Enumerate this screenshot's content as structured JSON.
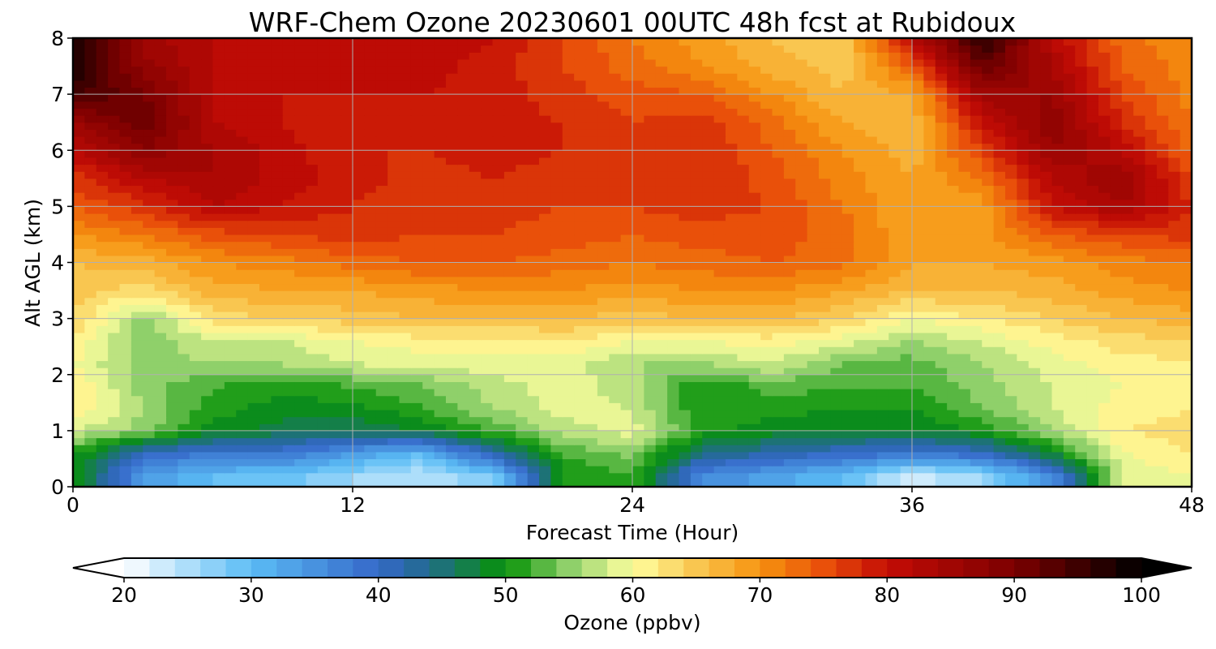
{
  "chart_data": {
    "type": "heatmap",
    "title": "WRF-Chem Ozone  20230601 00UTC 48h fcst at Rubidoux",
    "xlabel": "Forecast Time (Hour)",
    "ylabel": "Alt AGL (km)",
    "xlim": [
      0,
      48
    ],
    "ylim": [
      0,
      8
    ],
    "x_ticks": [
      0,
      12,
      24,
      36,
      48
    ],
    "y_ticks": [
      0,
      1,
      2,
      3,
      4,
      5,
      6,
      7,
      8
    ],
    "grid": true,
    "x_hours": [
      0,
      3,
      6,
      9,
      12,
      15,
      18,
      21,
      24,
      27,
      30,
      33,
      36,
      39,
      42,
      45,
      48
    ],
    "z_km": [
      0.2,
      0.6,
      1.0,
      1.4,
      1.8,
      2.2,
      2.6,
      3.0,
      3.5,
      4.0,
      4.5,
      5.0,
      5.5,
      6.0,
      6.5,
      7.0,
      7.5,
      8.0
    ],
    "values_ppbv": [
      [
        50,
        34,
        30,
        29,
        26,
        24,
        28,
        50,
        52,
        36,
        33,
        30,
        23,
        26,
        36,
        58,
        60
      ],
      [
        51,
        40,
        38,
        38,
        34,
        30,
        42,
        52,
        55,
        44,
        42,
        40,
        38,
        40,
        48,
        60,
        62
      ],
      [
        58,
        55,
        49,
        47,
        46,
        48,
        52,
        57,
        59,
        51,
        49,
        48,
        48,
        50,
        56,
        62,
        63
      ],
      [
        62,
        56,
        51,
        49,
        49,
        52,
        56,
        59,
        58,
        50,
        51,
        50,
        50,
        54,
        58,
        61,
        62
      ],
      [
        62,
        55,
        52,
        51,
        52,
        54,
        57,
        59,
        57,
        50,
        53,
        52,
        52,
        55,
        58,
        60,
        61
      ],
      [
        60,
        55,
        56,
        56,
        58,
        59,
        59,
        59,
        56,
        56,
        58,
        54,
        53,
        56,
        59,
        61,
        62
      ],
      [
        62,
        54,
        58,
        58,
        60,
        61,
        61,
        62,
        60,
        60,
        61,
        59,
        56,
        58,
        61,
        63,
        64
      ],
      [
        64,
        55,
        63,
        64,
        65,
        66,
        66,
        66,
        65,
        66,
        66,
        64,
        60,
        62,
        64,
        66,
        67
      ],
      [
        65,
        63,
        67,
        68,
        68,
        69,
        70,
        70,
        69,
        70,
        70,
        68,
        66,
        66,
        67,
        69,
        70
      ],
      [
        66,
        67,
        70,
        71,
        73,
        74,
        74,
        73,
        72,
        73,
        74,
        73,
        68,
        68,
        69,
        71,
        72
      ],
      [
        70,
        72,
        75,
        76,
        77,
        76,
        76,
        75,
        74,
        75,
        75,
        73,
        68,
        69,
        74,
        76,
        77
      ],
      [
        74,
        77,
        82,
        80,
        78,
        76,
        77,
        76,
        76,
        77,
        76,
        72,
        68,
        69,
        80,
        84,
        78
      ],
      [
        77,
        82,
        84,
        81,
        79,
        77,
        78,
        77,
        77,
        78,
        75,
        71,
        68,
        72,
        82,
        86,
        76
      ],
      [
        81,
        88,
        84,
        81,
        78,
        78,
        79,
        78,
        77,
        78,
        74,
        70,
        67,
        76,
        86,
        82,
        73
      ],
      [
        86,
        92,
        82,
        80,
        78,
        79,
        79,
        78,
        76,
        77,
        73,
        68,
        66,
        80,
        88,
        78,
        72
      ],
      [
        95,
        90,
        82,
        80,
        80,
        80,
        79,
        77,
        75,
        74,
        70,
        66,
        68,
        85,
        86,
        76,
        71
      ],
      [
        98,
        87,
        82,
        81,
        81,
        81,
        79,
        76,
        73,
        70,
        67,
        65,
        74,
        92,
        84,
        74,
        71
      ],
      [
        98,
        85,
        82,
        82,
        82,
        82,
        80,
        76,
        72,
        69,
        66,
        64,
        82,
        97,
        82,
        73,
        70
      ]
    ],
    "colorbar": {
      "label": "Ozone  (ppbv)",
      "min": 20,
      "max": 100,
      "step": 2,
      "ticks": [
        20,
        30,
        40,
        50,
        60,
        70,
        80,
        90,
        100
      ],
      "extend": "both",
      "color_stops": [
        {
          "value": 20,
          "color": "#ffffff"
        },
        {
          "value": 30,
          "color": "#5bbcf5"
        },
        {
          "value": 40,
          "color": "#3568c9"
        },
        {
          "value": 44,
          "color": "#216b8c"
        },
        {
          "value": 50,
          "color": "#069206"
        },
        {
          "value": 55,
          "color": "#8fd06a"
        },
        {
          "value": 60,
          "color": "#ffffa0"
        },
        {
          "value": 65,
          "color": "#f9c650"
        },
        {
          "value": 70,
          "color": "#f6930f"
        },
        {
          "value": 75,
          "color": "#e9500a"
        },
        {
          "value": 80,
          "color": "#c40c05"
        },
        {
          "value": 90,
          "color": "#7c0000"
        },
        {
          "value": 100,
          "color": "#000000"
        }
      ]
    }
  }
}
